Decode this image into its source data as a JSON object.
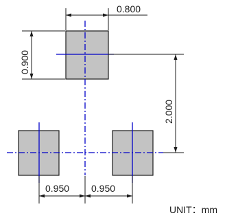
{
  "dimensions": {
    "pad_width": "0.800",
    "pad_height": "0.900",
    "vertical_pitch": "2.000",
    "left_offset": "0.950",
    "right_offset": "0.950"
  },
  "unit_label": "UNIT：mm",
  "colors": {
    "pad_fill": "#c3c3c3",
    "centerline": "#0000c8",
    "dimension_lines": "#1a1a1a"
  }
}
